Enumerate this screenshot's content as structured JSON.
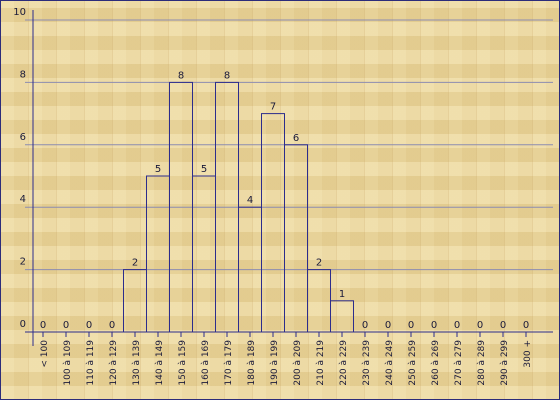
{
  "chart_data": {
    "type": "bar",
    "categories": [
      "< 100",
      "100 à 109",
      "110 à 119",
      "120 à 129",
      "130 à 139",
      "140 à 149",
      "150 à 159",
      "160 à 169",
      "170 à 179",
      "180 à 189",
      "190 à 199",
      "200 à 209",
      "210 à 219",
      "220 à 229",
      "230 à 239",
      "240 à 249",
      "250 à 259",
      "260 à 269",
      "270 à 279",
      "280 à 289",
      "290 à 299",
      "300 +"
    ],
    "values": [
      0,
      0,
      0,
      0,
      2,
      5,
      8,
      5,
      8,
      4,
      7,
      6,
      2,
      1,
      0,
      0,
      0,
      0,
      0,
      0,
      0,
      0
    ],
    "color": "#2c2c8c",
    "ylim": [
      0,
      10
    ],
    "yticks": [
      0,
      2,
      4,
      6,
      8,
      10
    ],
    "grid": true
  }
}
